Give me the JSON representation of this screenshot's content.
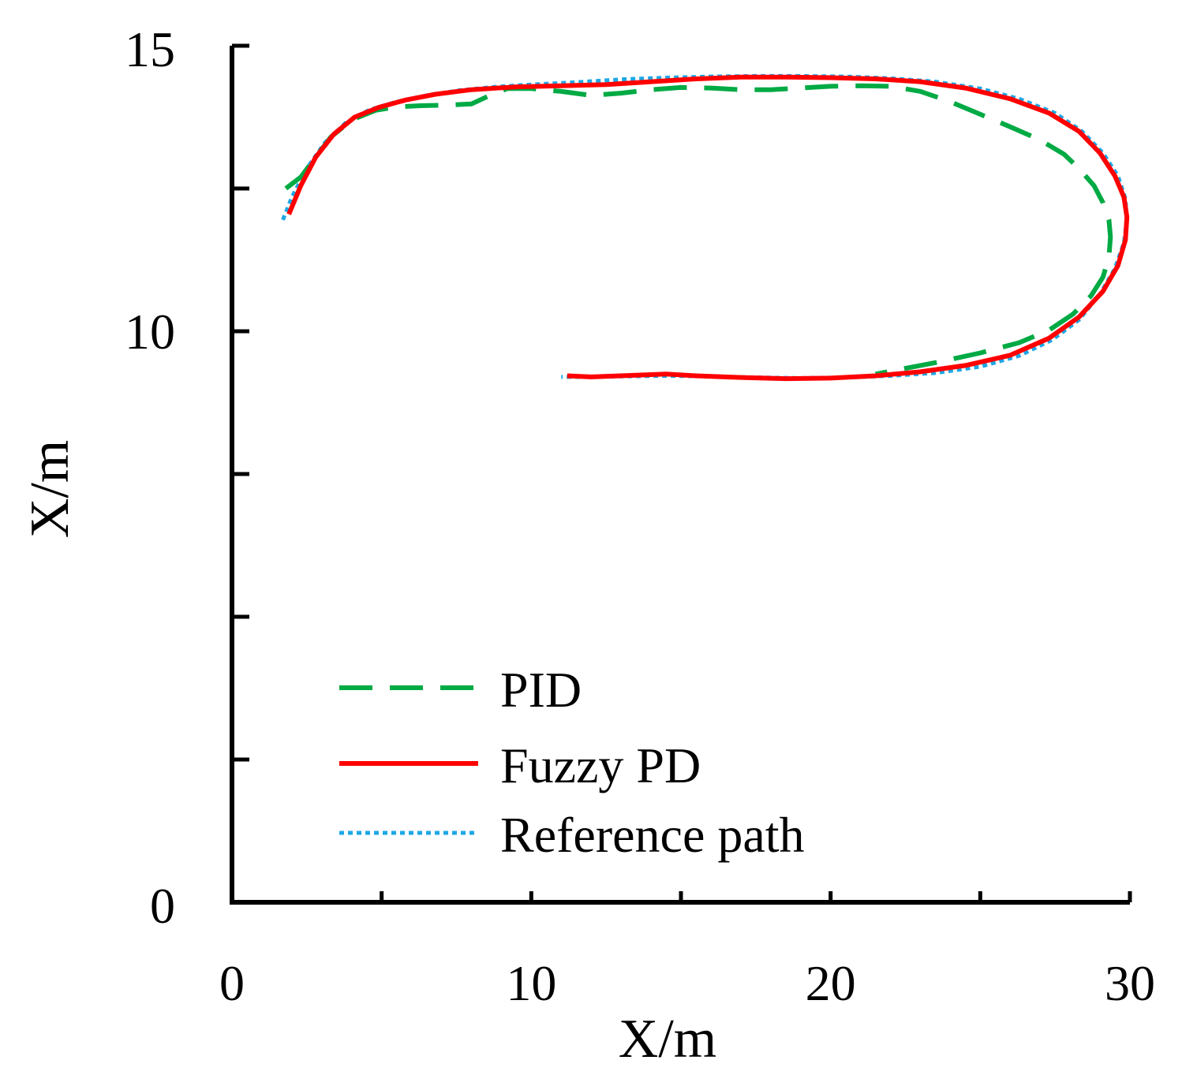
{
  "chart_data": {
    "type": "line",
    "title": "",
    "xlabel": "X/m",
    "ylabel": "X/m",
    "xlim": [
      0,
      30
    ],
    "ylim": [
      0,
      15
    ],
    "x_ticks": [
      0,
      10,
      20,
      30
    ],
    "x_minor_ticks": [
      5,
      15,
      25
    ],
    "y_ticks": [
      0,
      10,
      15
    ],
    "y_minor_ticks": [
      2.5,
      5,
      7.5,
      12.5
    ],
    "grid": false,
    "legend_position": "bottom-left",
    "series": [
      {
        "name": "PID",
        "color": "#00aa44",
        "style": "dashed",
        "x": [
          1.8,
          2.3,
          2.8,
          3.3,
          4.0,
          4.8,
          5.5,
          6.3,
          7.2,
          8.0,
          8.7,
          9.2,
          10.0,
          11.0,
          12.0,
          13.0,
          14.0,
          15.0,
          16.0,
          17.0,
          18.0,
          19.0,
          20.0,
          21.0,
          22.0,
          23.0,
          24.0,
          25.0,
          26.0,
          27.0,
          27.8,
          28.3,
          28.8,
          29.1,
          29.3,
          29.35,
          29.3,
          29.1,
          28.7,
          28.1,
          27.3,
          26.3,
          25.0,
          23.5,
          22.0,
          21.5
        ],
        "y": [
          12.5,
          12.7,
          13.05,
          13.4,
          13.7,
          13.87,
          13.93,
          13.95,
          13.96,
          13.98,
          14.15,
          14.25,
          14.25,
          14.2,
          14.13,
          14.17,
          14.23,
          14.27,
          14.26,
          14.23,
          14.23,
          14.26,
          14.29,
          14.3,
          14.29,
          14.2,
          14.02,
          13.8,
          13.58,
          13.35,
          13.1,
          12.85,
          12.55,
          12.25,
          11.95,
          11.65,
          11.3,
          10.95,
          10.62,
          10.3,
          10.02,
          9.8,
          9.62,
          9.45,
          9.3,
          9.25
        ]
      },
      {
        "name": "Fuzzy PD",
        "color": "#ff0000",
        "style": "solid",
        "x": [
          1.9,
          2.3,
          2.8,
          3.4,
          4.1,
          4.9,
          5.8,
          6.8,
          8.0,
          9.5,
          11.0,
          12.5,
          14.0,
          15.5,
          17.0,
          18.5,
          20.0,
          21.5,
          23.0,
          24.5,
          26.0,
          27.3,
          28.3,
          29.0,
          29.5,
          29.8,
          29.9,
          29.85,
          29.6,
          29.1,
          28.3,
          27.3,
          26.0,
          24.5,
          23.0,
          21.5,
          20.0,
          18.5,
          17.0,
          15.5,
          14.5,
          13.5,
          12.0,
          11.2
        ],
        "y": [
          12.05,
          12.55,
          13.05,
          13.45,
          13.75,
          13.92,
          14.05,
          14.15,
          14.23,
          14.28,
          14.3,
          14.32,
          14.37,
          14.42,
          14.45,
          14.45,
          14.44,
          14.42,
          14.37,
          14.26,
          14.07,
          13.82,
          13.5,
          13.12,
          12.72,
          12.35,
          12.0,
          11.6,
          11.15,
          10.7,
          10.25,
          9.88,
          9.58,
          9.4,
          9.29,
          9.22,
          9.18,
          9.17,
          9.19,
          9.22,
          9.25,
          9.23,
          9.2,
          9.22
        ]
      },
      {
        "name": "Reference path",
        "color": "#1ea7e6",
        "style": "dotted",
        "x": [
          1.7,
          2.0,
          2.5,
          3.1,
          3.8,
          4.6,
          5.5,
          6.5,
          7.6,
          8.8,
          10.0,
          11.5,
          13.0,
          14.5,
          16.0,
          17.5,
          19.0,
          20.5,
          22.0,
          23.5,
          25.0,
          26.3,
          27.5,
          28.4,
          29.1,
          29.6,
          29.85,
          29.9,
          29.8,
          29.5,
          29.0,
          28.3,
          27.4,
          26.3,
          25.0,
          23.5,
          22.0,
          20.5,
          19.0,
          17.5,
          16.0,
          14.5,
          13.0,
          12.0,
          11.0
        ],
        "y": [
          11.95,
          12.35,
          12.85,
          13.3,
          13.65,
          13.88,
          14.02,
          14.13,
          14.22,
          14.28,
          14.32,
          14.36,
          14.41,
          14.44,
          14.46,
          14.47,
          14.47,
          14.46,
          14.43,
          14.37,
          14.25,
          14.07,
          13.82,
          13.5,
          13.12,
          12.72,
          12.32,
          11.95,
          11.55,
          11.1,
          10.65,
          10.2,
          9.85,
          9.57,
          9.38,
          9.27,
          9.22,
          9.19,
          9.18,
          9.19,
          9.21,
          9.22,
          9.21,
          9.2,
          9.2
        ]
      }
    ]
  }
}
